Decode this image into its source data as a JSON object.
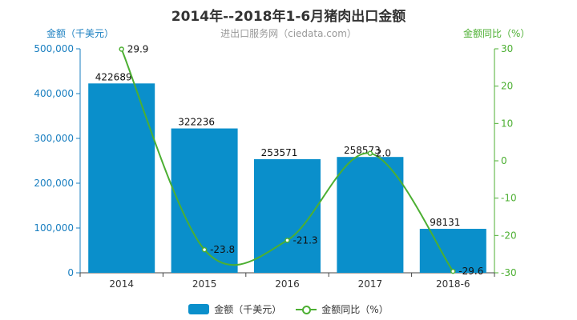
{
  "chart_data": {
    "type": "bar",
    "title": "2014年--2018年1-6月猪肉出口金额",
    "subtitle": "进出口服务网（ciedata.com）",
    "categories": [
      "2014",
      "2015",
      "2016",
      "2017",
      "2018-6"
    ],
    "series": [
      {
        "name": "金额（千美元）",
        "type": "bar",
        "axis": "left",
        "color": "#0a8fcb",
        "values": [
          422689,
          322236,
          253571,
          258573,
          98131
        ]
      },
      {
        "name": "金额同比（%）",
        "type": "line",
        "axis": "right",
        "color": "#4caf32",
        "values": [
          29.9,
          -23.8,
          -21.3,
          2.0,
          -29.6
        ]
      }
    ],
    "ylabel_left": "金额（千美元）",
    "ylabel_right": "金额同比（%）",
    "ylim_left": [
      0,
      500000
    ],
    "ylim_right": [
      -30,
      30
    ],
    "yticks_left": [
      "0",
      "100,000",
      "200,000",
      "300,000",
      "400,000",
      "500,000"
    ],
    "yticks_right": [
      "-30",
      "-20",
      "-10",
      "0",
      "10",
      "20",
      "30"
    ],
    "bar_labels": [
      "422689",
      "322236",
      "253571",
      "258573",
      "98131"
    ],
    "line_labels": [
      "29.9",
      "-23.8",
      "-21.3",
      "2.0",
      "-29.6"
    ],
    "grid": false,
    "legend_position": "bottom"
  }
}
